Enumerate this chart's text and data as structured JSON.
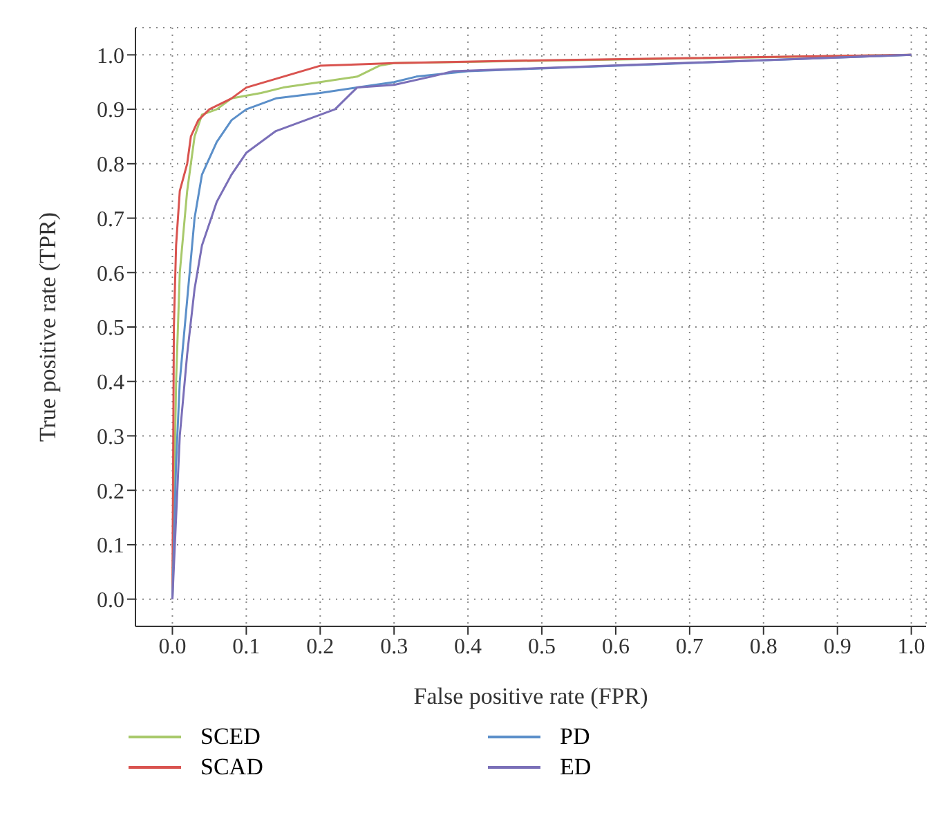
{
  "chart_data": {
    "type": "line",
    "xlabel": "False positive rate (FPR)",
    "ylabel": "True positive rate (TPR)",
    "xlim": [
      -0.05,
      1.02
    ],
    "ylim": [
      -0.05,
      1.05
    ],
    "xticks": [
      {
        "value": 0,
        "label": "0.0"
      },
      0.1,
      0.2,
      0.3,
      0.4,
      0.5,
      0.6,
      0.7,
      0.8,
      0.9,
      {
        "value": 1,
        "label": "1.0"
      }
    ],
    "yticks": [
      {
        "value": 0,
        "label": "0.0"
      },
      0.1,
      0.2,
      0.3,
      0.4,
      0.5,
      0.6,
      0.7,
      0.8,
      0.9,
      {
        "value": 1,
        "label": "1.0"
      }
    ],
    "grid": true,
    "legend": "bottom",
    "line_style": "solid",
    "series": [
      {
        "name": "SCED",
        "color": "#a8c96b",
        "x": [
          0,
          0.005,
          0.01,
          0.02,
          0.03,
          0.04,
          0.06,
          0.08,
          0.12,
          0.15,
          0.2,
          0.25,
          0.28,
          0.3,
          1
        ],
        "values": [
          0,
          0.4,
          0.6,
          0.75,
          0.85,
          0.89,
          0.9,
          0.92,
          0.93,
          0.94,
          0.95,
          0.96,
          0.98,
          0.985,
          1
        ]
      },
      {
        "name": "SCAD",
        "color": "#d9534f",
        "x": [
          0,
          0.002,
          0.005,
          0.01,
          0.02,
          0.025,
          0.035,
          0.05,
          0.08,
          0.1,
          0.15,
          0.2,
          0.3,
          0.5,
          1
        ],
        "values": [
          0,
          0.5,
          0.65,
          0.75,
          0.8,
          0.85,
          0.88,
          0.9,
          0.92,
          0.94,
          0.96,
          0.98,
          0.985,
          0.99,
          1
        ]
      },
      {
        "name": "PD",
        "color": "#5b8fc9",
        "x": [
          0,
          0.005,
          0.01,
          0.02,
          0.03,
          0.04,
          0.06,
          0.08,
          0.1,
          0.14,
          0.2,
          0.25,
          0.3,
          0.33,
          0.4,
          1
        ],
        "values": [
          0,
          0.25,
          0.4,
          0.55,
          0.7,
          0.78,
          0.84,
          0.88,
          0.9,
          0.92,
          0.93,
          0.94,
          0.95,
          0.96,
          0.97,
          1
        ]
      },
      {
        "name": "ED",
        "color": "#7a6fb8",
        "x": [
          0,
          0.005,
          0.01,
          0.02,
          0.03,
          0.04,
          0.06,
          0.08,
          0.1,
          0.14,
          0.18,
          0.22,
          0.25,
          0.3,
          0.35,
          0.38,
          1
        ],
        "values": [
          0,
          0.15,
          0.3,
          0.45,
          0.57,
          0.65,
          0.73,
          0.78,
          0.82,
          0.86,
          0.88,
          0.9,
          0.94,
          0.945,
          0.96,
          0.97,
          1
        ]
      }
    ]
  }
}
